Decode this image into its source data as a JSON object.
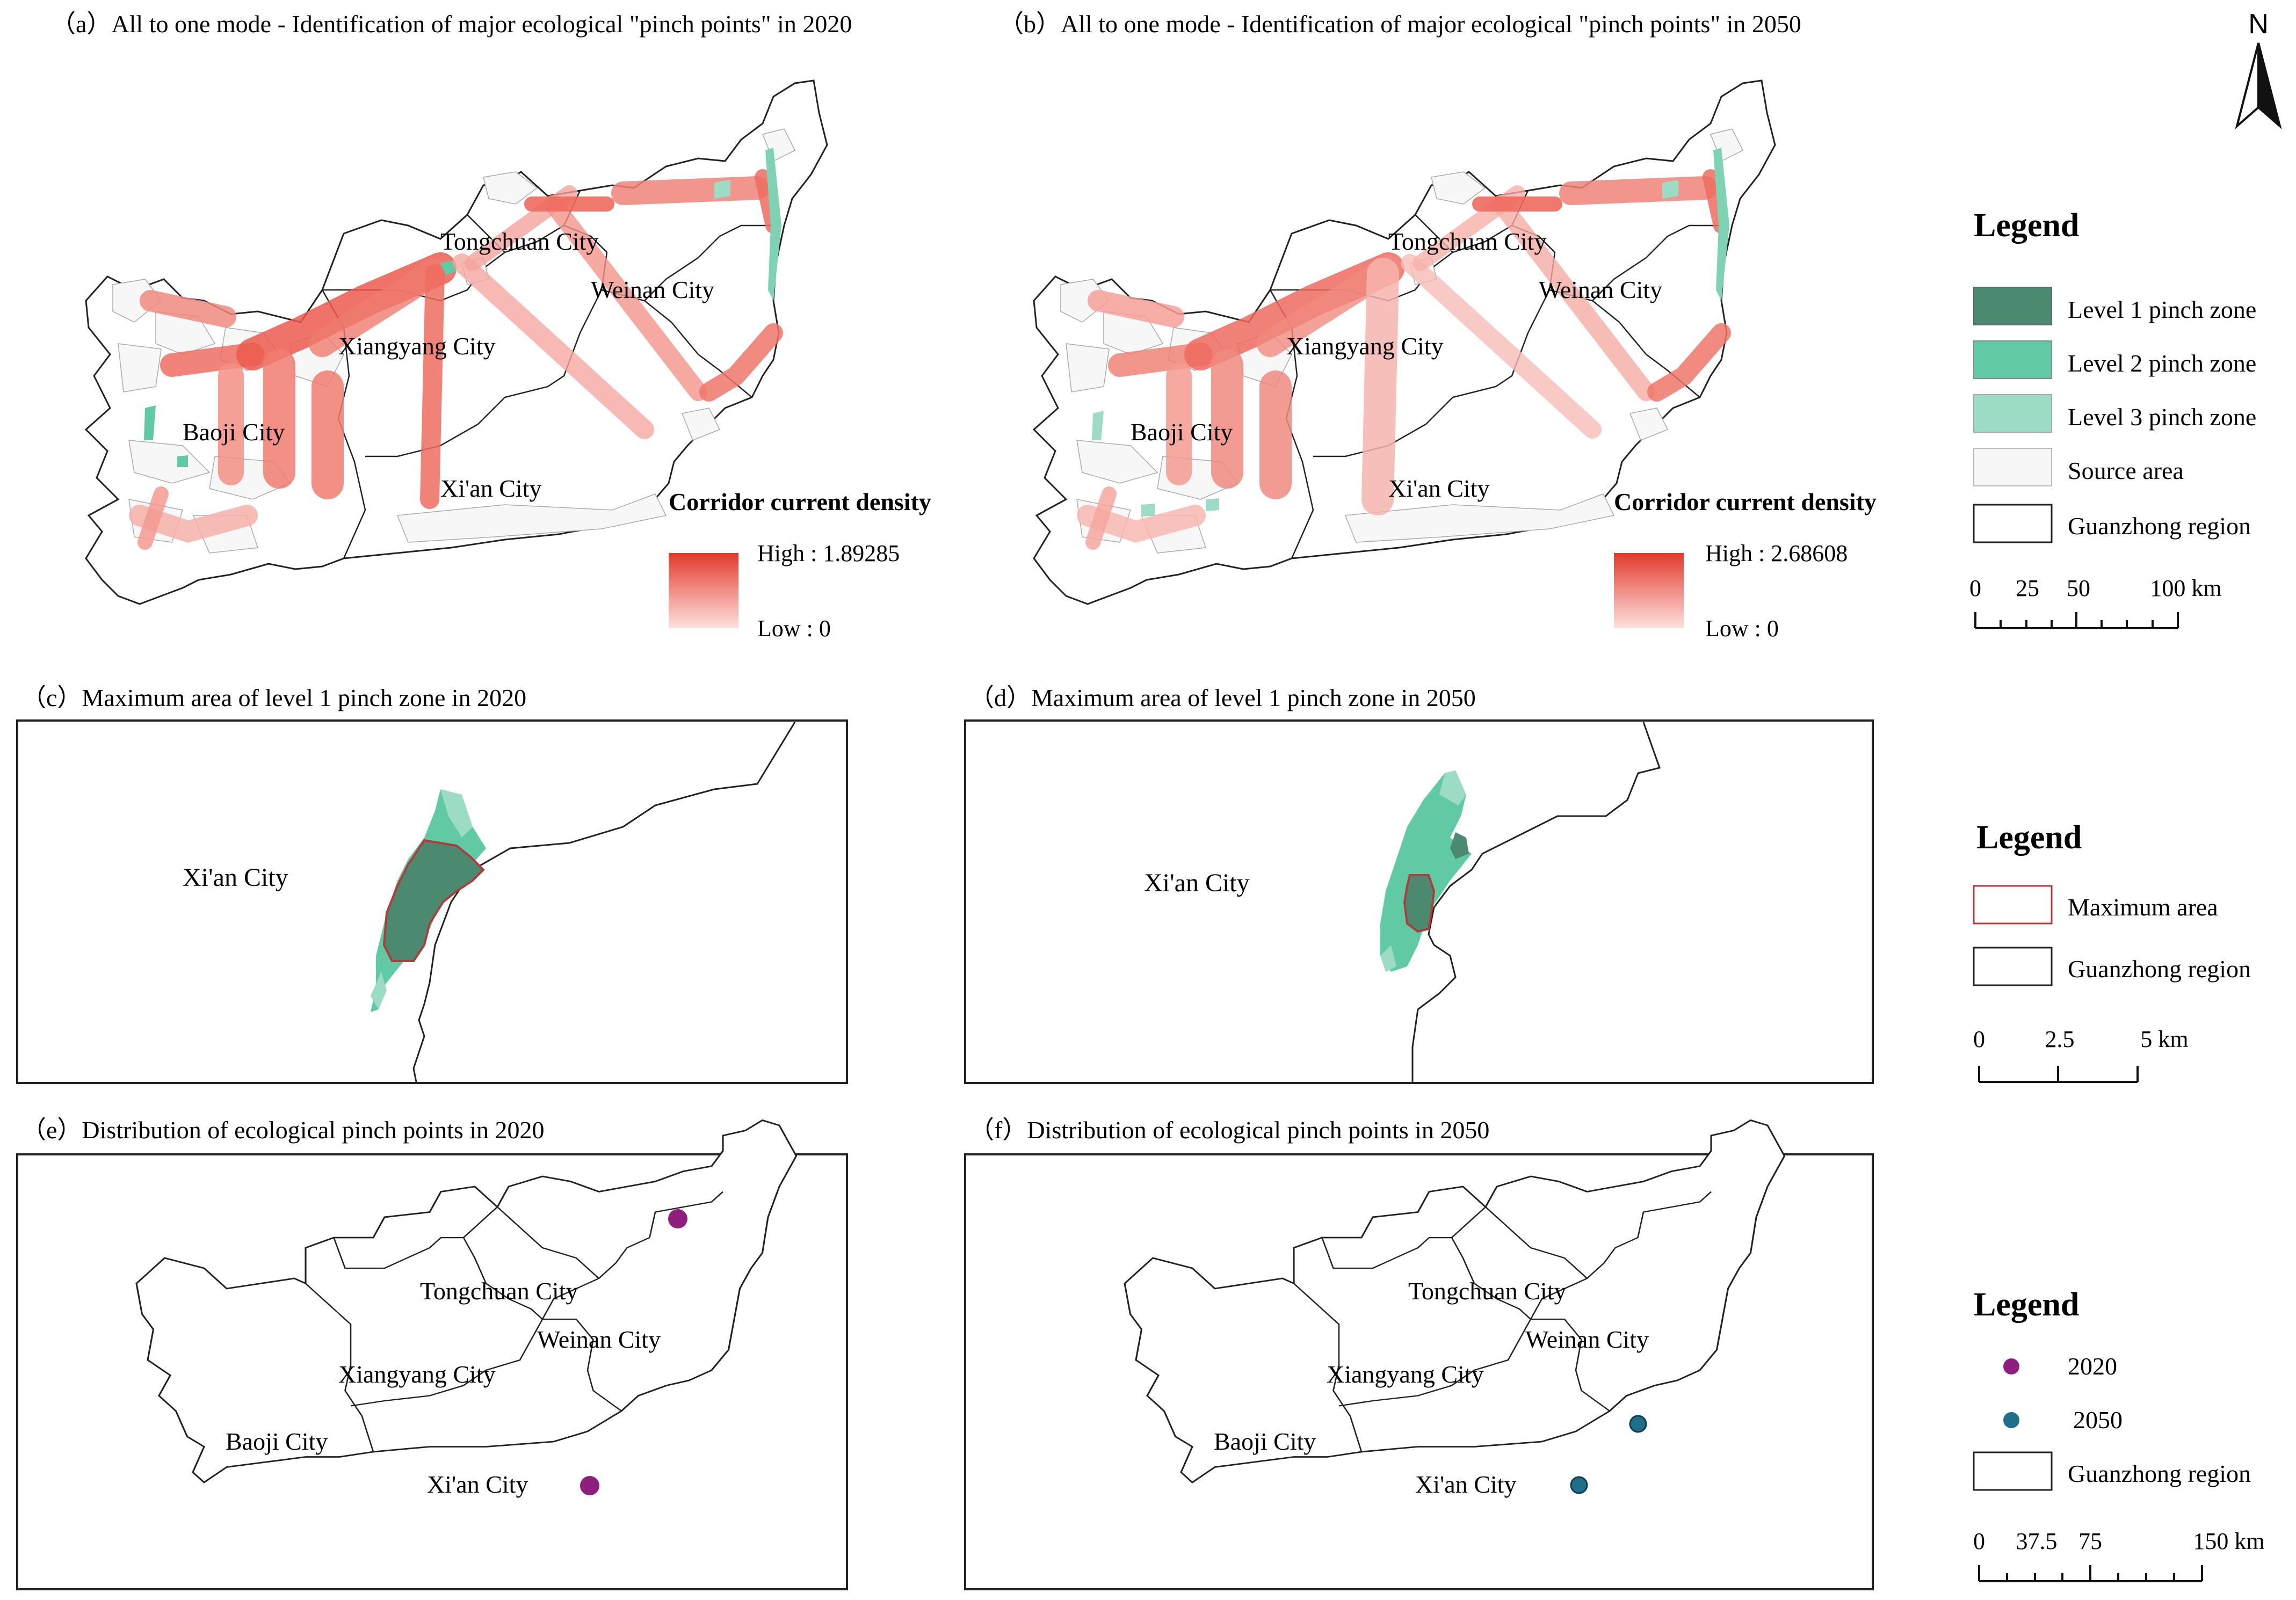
{
  "panels": {
    "a": {
      "title": "（a）All to one mode - Identification of major ecological \"pinch points\" in 2020",
      "density_title": "Corridor current density",
      "high": "High : 1.89285",
      "low": "Low : 0"
    },
    "b": {
      "title": "（b）All to one mode - Identification of major ecological \"pinch points\" in 2050",
      "density_title": "Corridor current density",
      "high": "High : 2.68608",
      "low": "Low : 0"
    },
    "c": {
      "title": "（c）Maximum  area of  level 1 pinch zone in 2020",
      "city": "Xi'an City"
    },
    "d": {
      "title": "（d）Maximum  area of  level 1 pinch zone in 2050",
      "city": "Xi'an City"
    },
    "e": {
      "title": "（e）Distribution of ecological pinch points in 2020"
    },
    "f": {
      "title": "（f）Distribution of ecological pinch points in 2050"
    }
  },
  "cities": {
    "tongchuan": "Tongchuan City",
    "weinan": "Weinan City",
    "xiangyang": "Xiangyang City",
    "baoji": "Baoji City",
    "xian": "Xi'an City"
  },
  "north": "N",
  "legend1": {
    "title": "Legend",
    "items": [
      "Level 1 pinch zone",
      "Level 2  pinch zone",
      "Level 3 pinch zone",
      "Source area",
      "Guanzhong region"
    ],
    "scale": [
      "0",
      "25",
      "50",
      "100 km"
    ]
  },
  "legend2": {
    "title": "Legend",
    "items": [
      "Maximum area",
      "Guanzhong region"
    ],
    "scale": [
      "0",
      "2.5",
      "5 km"
    ]
  },
  "legend3": {
    "title": "Legend",
    "items": [
      "2020",
      "2050",
      "Guanzhong region"
    ],
    "scale": [
      "0",
      "37.5",
      "75",
      "150 km"
    ]
  },
  "colors": {
    "level1": "#4b8a70",
    "level2": "#5fcaa3",
    "level3": "#9ddcc4",
    "corridor_high": "#e8463a",
    "corridor_low": "#f9c8c4",
    "max_area_border": "#b23a3a",
    "point_2020": "#8e1f7e",
    "point_2050": "#1f6f8b"
  }
}
